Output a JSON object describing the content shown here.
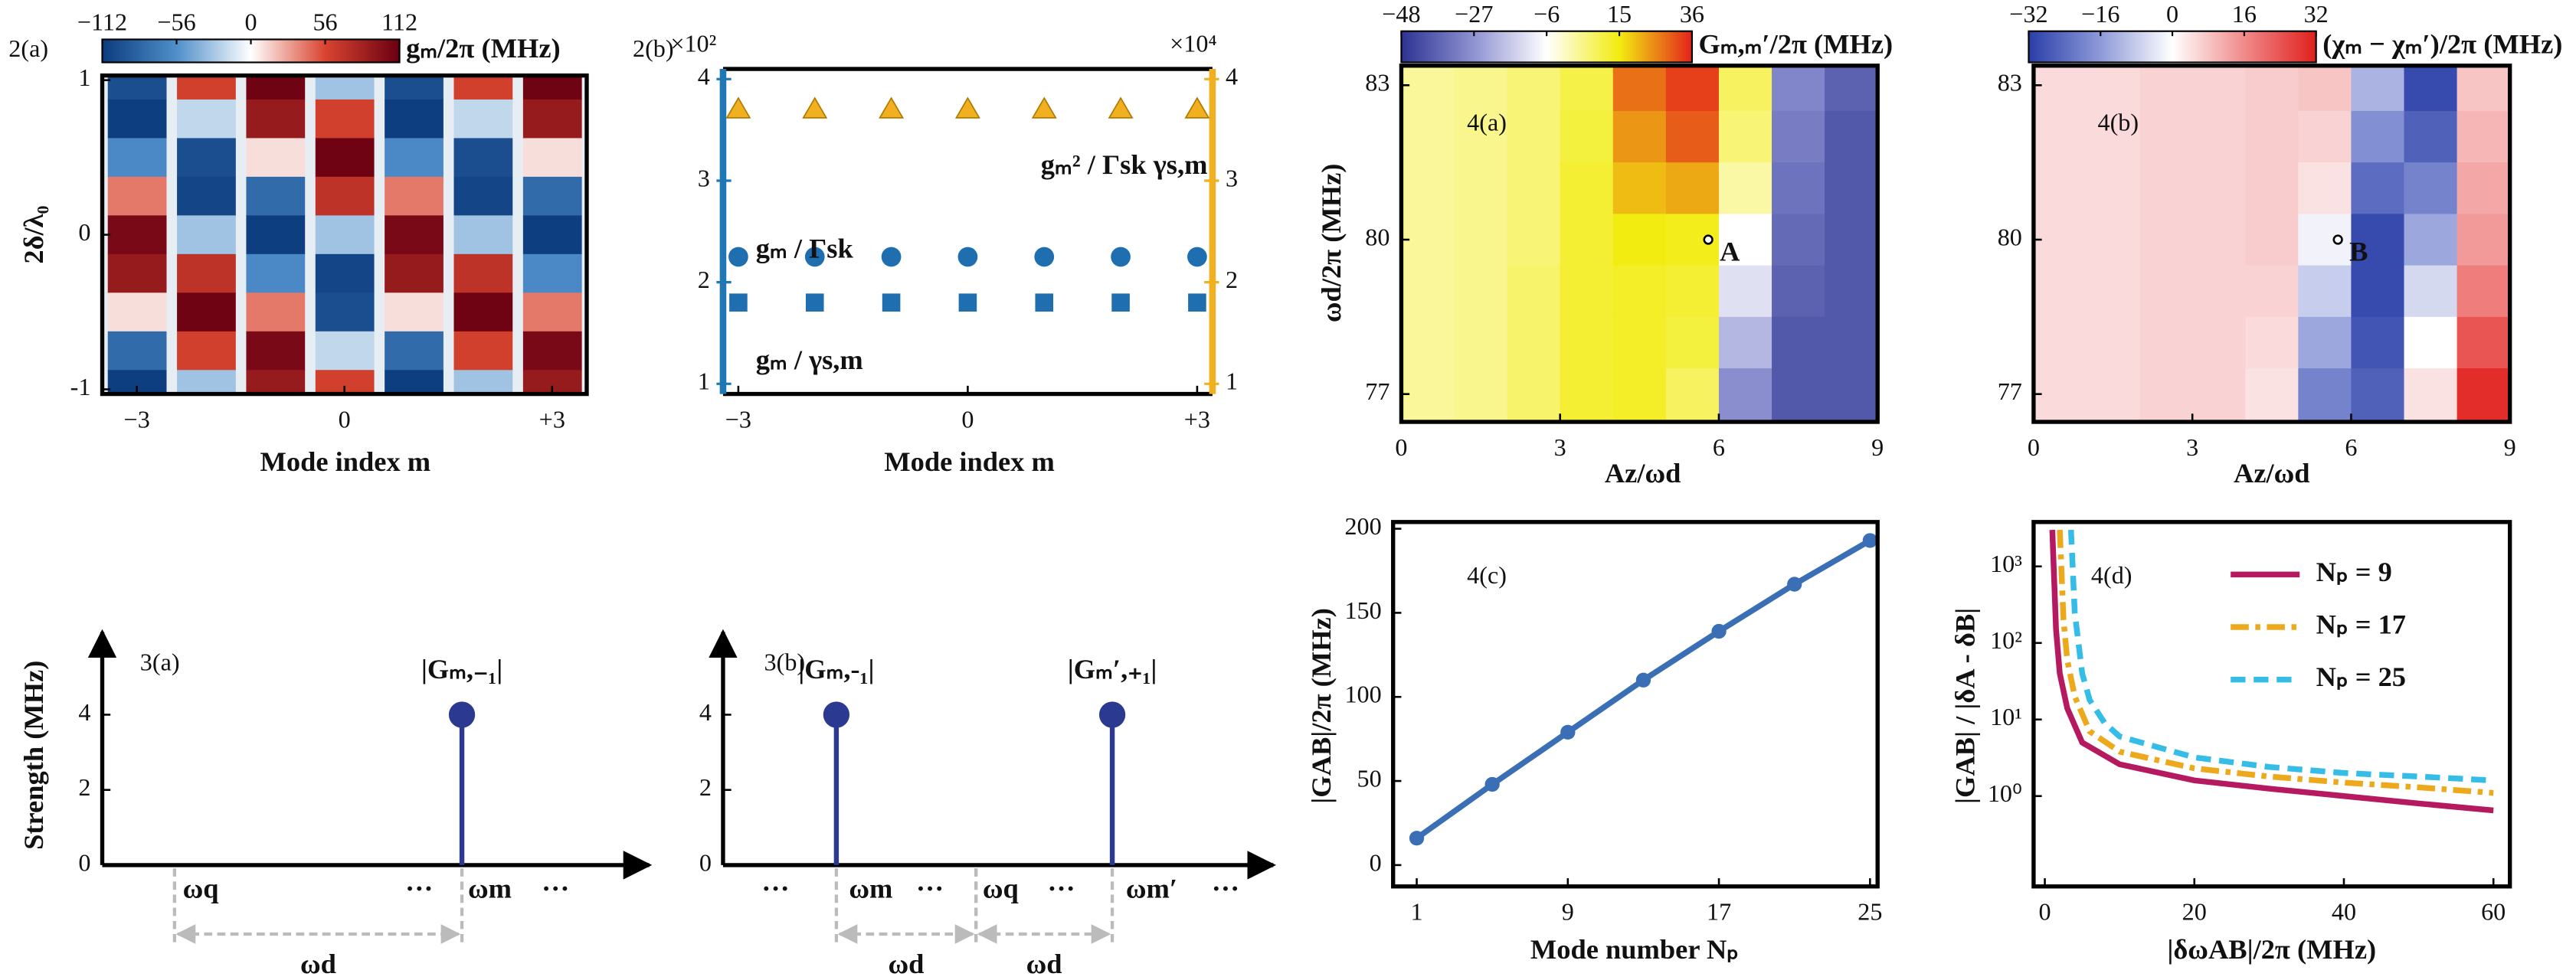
{
  "chart_data": [
    {
      "type": "heatmap",
      "panel_label": "2(a)",
      "colorbar_label": "gₘ/2π (MHz)",
      "cbar_lim": [
        -112,
        112
      ],
      "cbar_ticks": [
        {
          "value": -112,
          "label": "−112"
        },
        {
          "value": -56,
          "label": "−56"
        },
        0,
        56,
        112
      ],
      "colormap": [
        "#0b3c7d",
        "#4f8fca",
        "#ffffff",
        "#d9442f",
        "#6b0012"
      ],
      "x": [
        -3,
        -2,
        -1,
        0,
        1,
        2,
        3
      ],
      "y": [
        1,
        0.75,
        0.5,
        0.25,
        0,
        -0.25,
        -0.5,
        -0.75,
        -1
      ],
      "z": [
        [
          -100,
          60,
          110,
          -30,
          -100,
          60,
          110
        ],
        [
          -110,
          -20,
          90,
          60,
          -110,
          -20,
          90
        ],
        [
          -60,
          -100,
          10,
          110,
          -60,
          -100,
          10
        ],
        [
          40,
          -105,
          -80,
          70,
          40,
          -105,
          -80
        ],
        [
          105,
          -30,
          -110,
          -30,
          105,
          -30,
          -110
        ],
        [
          90,
          70,
          -60,
          -105,
          90,
          70,
          -60
        ],
        [
          10,
          110,
          40,
          -100,
          10,
          110,
          40
        ],
        [
          -80,
          60,
          105,
          -20,
          -80,
          60,
          105
        ],
        [
          -110,
          -30,
          90,
          60,
          -110,
          -30,
          90
        ]
      ],
      "xlim": [
        -3.5,
        3.5
      ],
      "ylim": [
        -1.03,
        1.03
      ],
      "xticks": [
        {
          "value": -3,
          "label": "−3"
        },
        0,
        {
          "value": 3,
          "label": "+3"
        }
      ],
      "yticks": [
        1,
        0,
        -1
      ],
      "xlabel": "Mode index m",
      "ylabel": "2δ/λ₀"
    },
    {
      "type": "scatter",
      "panel_label": "2(b)",
      "x": [
        -3,
        -2,
        -1,
        0,
        1,
        2,
        3
      ],
      "xlim": [
        -3.2,
        3.2
      ],
      "xticks": [
        {
          "value": -3,
          "label": "−3"
        },
        0,
        {
          "value": 3,
          "label": "+3"
        }
      ],
      "ylim": [
        0.9,
        4.1
      ],
      "yticks": [
        1,
        2,
        3,
        4
      ],
      "y2lim": [
        0.9,
        4.1
      ],
      "y2ticks": [
        1,
        2,
        3,
        4
      ],
      "y_scale_label": "×10²",
      "y2_scale_label": "×10⁴",
      "y_axis_color": "#1f77b4",
      "y2_axis_color": "#f0b020",
      "xlabel": "Mode index m",
      "series": [
        {
          "name": "gₘ / Γsk",
          "marker": "circle",
          "color": "#1f6fb0",
          "values": [
            2.25,
            2.25,
            2.25,
            2.25,
            2.25,
            2.25,
            2.25
          ]
        },
        {
          "name": "gₘ / γs,m",
          "marker": "square",
          "color": "#1f6fb0",
          "values": [
            1.8,
            1.8,
            1.8,
            1.8,
            1.8,
            1.8,
            1.8
          ]
        },
        {
          "name": "gₘ² / Γsk γs,m",
          "marker": "triangle",
          "color": "#f0b020",
          "axis": "y2",
          "values": [
            3.7,
            3.7,
            3.7,
            3.7,
            3.7,
            3.7,
            3.7
          ]
        }
      ]
    },
    {
      "type": "stem",
      "panel_label": "3(a)",
      "ylabel": "Strength (MHz)",
      "color": "#2b3990",
      "ylim": [
        0,
        6.2
      ],
      "yticks": [
        0,
        2,
        4
      ],
      "stems": [
        {
          "label": "|Gₘ,₋₁|",
          "value": 4
        }
      ],
      "x_labels": [
        "ωq",
        "···",
        "ωm",
        "···"
      ],
      "interval_labels": [
        "ωd"
      ]
    },
    {
      "type": "stem",
      "panel_label": "3(b)",
      "color": "#2b3990",
      "ylim": [
        0,
        6.2
      ],
      "yticks": [
        0,
        2,
        4
      ],
      "stems": [
        {
          "label": "|Gₘ,-₁|",
          "value": 4
        },
        {
          "label": "|Gₘ′,₊₁|",
          "value": 4
        }
      ],
      "x_labels": [
        "···",
        "ωm",
        "···",
        "ωq",
        "···",
        "ωm′",
        "···"
      ],
      "interval_labels": [
        "ωd",
        "ωd"
      ]
    },
    {
      "type": "heatmap",
      "panel_label": "4(a)",
      "colorbar_label": "Gₘ,ₘ′/2π (MHz)",
      "cbar_lim": [
        -48,
        36
      ],
      "cbar_ticks": [
        {
          "value": -48,
          "label": "−48"
        },
        {
          "value": -27,
          "label": "−27"
        },
        {
          "value": -6,
          "label": "−6"
        },
        15,
        36
      ],
      "colormap": [
        "#2d3392",
        "#8f93d2",
        "#ffffff",
        "#f2ec10",
        "#e3231c"
      ],
      "x": [
        0.5,
        1.5,
        2.5,
        3.5,
        4.5,
        5.5,
        6.5,
        7.5,
        8.5
      ],
      "y": [
        83,
        82,
        81,
        80,
        79,
        78,
        77
      ],
      "z": [
        [
          3,
          4,
          6,
          10,
          28,
          33,
          8,
          -30,
          -38
        ],
        [
          3,
          4,
          6,
          11,
          24,
          30,
          6,
          -32,
          -40
        ],
        [
          3,
          4,
          6,
          12,
          20,
          22,
          2,
          -34,
          -40
        ],
        [
          3,
          4,
          6,
          12,
          15,
          14,
          -6,
          -36,
          -40
        ],
        [
          3,
          4,
          7,
          12,
          13,
          12,
          -12,
          -38,
          -40
        ],
        [
          3,
          4,
          7,
          12,
          13,
          11,
          -20,
          -40,
          -40
        ],
        [
          3,
          4,
          7,
          12,
          13,
          8,
          -28,
          -40,
          -40
        ]
      ],
      "xlim": [
        0,
        9
      ],
      "ylim": [
        76.46,
        83.38
      ],
      "xticks": [
        0,
        3,
        6,
        9
      ],
      "yticks": [
        83,
        80,
        77
      ],
      "xlabel": "Az/ωd",
      "ylabel": "ωd/2π (MHz)",
      "points": [
        {
          "label": "A",
          "x": 5.8,
          "y": 80
        }
      ]
    },
    {
      "type": "heatmap",
      "panel_label": "4(b)",
      "colorbar_label": "(χₘ − χₘ′)/2π (MHz)",
      "cbar_lim": [
        -32,
        32
      ],
      "cbar_ticks": [
        {
          "value": -32,
          "label": "−32"
        },
        {
          "value": -16,
          "label": "−16"
        },
        0,
        16,
        32
      ],
      "colormap": [
        "#2a3ea8",
        "#8e9ad8",
        "#ffffff",
        "#f08a8a",
        "#e0201c"
      ],
      "x": [
        0.5,
        1.5,
        2.5,
        3.5,
        4.5,
        5.5,
        6.5,
        7.5,
        8.5
      ],
      "y": [
        83,
        82,
        81,
        80,
        79,
        78,
        77
      ],
      "z": [
        [
          5,
          5,
          6,
          6,
          7,
          8,
          -12,
          -30,
          8
        ],
        [
          5,
          5,
          6,
          6,
          7,
          6,
          -18,
          -26,
          10
        ],
        [
          5,
          5,
          6,
          6,
          7,
          4,
          -24,
          -20,
          12
        ],
        [
          5,
          5,
          6,
          6,
          7,
          -2,
          -30,
          -14,
          14
        ],
        [
          5,
          5,
          6,
          6,
          6,
          -8,
          -30,
          -6,
          18
        ],
        [
          5,
          5,
          6,
          6,
          5,
          -14,
          -28,
          0,
          24
        ],
        [
          5,
          5,
          6,
          6,
          4,
          -20,
          -26,
          4,
          30
        ]
      ],
      "xlim": [
        0,
        9
      ],
      "ylim": [
        76.46,
        83.38
      ],
      "xticks": [
        0,
        3,
        6,
        9
      ],
      "yticks": [
        83,
        80,
        77
      ],
      "xlabel": "Az/ωd",
      "points": [
        {
          "label": "B",
          "x": 5.75,
          "y": 80
        }
      ]
    },
    {
      "type": "line",
      "panel_label": "4(c)",
      "x": [
        1,
        5,
        9,
        13,
        17,
        21,
        25
      ],
      "xlim": [
        -0.25,
        25.4
      ],
      "xticks": [
        1,
        9,
        17,
        25
      ],
      "ylim": [
        -12.7,
        204
      ],
      "yticks": [
        0,
        50,
        100,
        150,
        200
      ],
      "xlabel": "Mode number Nₚ",
      "ylabel": "|GAB|/2π (MHz)",
      "markers": true,
      "series": [
        {
          "color": "#3a6fb5",
          "linestyle": "solid",
          "values": [
            16,
            48,
            79,
            110,
            139,
            167,
            193
          ]
        }
      ]
    },
    {
      "type": "line",
      "panel_label": "4(d)",
      "log_y": true,
      "legend": "upper right",
      "xlim": [
        -1.5,
        62.2
      ],
      "xticks": [
        0,
        20,
        40,
        60
      ],
      "ylim": [
        0.066,
        3800
      ],
      "yticks": [
        {
          "value": 1,
          "label": "10⁰"
        },
        {
          "value": 10,
          "label": "10¹"
        },
        {
          "value": 100,
          "label": "10²"
        },
        {
          "value": 1000,
          "label": "10³"
        }
      ],
      "xlabel": "|δωAB|/2π (MHz)",
      "ylabel": "|GAB| / |δA - δB|",
      "series": [
        {
          "name": "Nₚ = 9",
          "color": "#b5195f",
          "linestyle": "solid",
          "x": [
            1,
            1.5,
            2,
            3,
            5,
            10,
            20,
            30,
            40,
            50,
            60
          ],
          "values": [
            3000,
            150,
            40,
            14,
            5,
            2.6,
            1.6,
            1.25,
            1,
            0.8,
            0.65
          ]
        },
        {
          "name": "Nₚ = 17",
          "color": "#eda91c",
          "linestyle": "dashdot",
          "x": [
            2,
            2.5,
            3,
            4,
            6,
            10,
            20,
            30,
            40,
            50,
            60
          ],
          "values": [
            3000,
            200,
            60,
            20,
            7,
            3.8,
            2.3,
            1.8,
            1.5,
            1.3,
            1.1
          ]
        },
        {
          "name": "Nₚ = 25",
          "color": "#35bde8",
          "linestyle": "dashed",
          "x": [
            3.5,
            4,
            5,
            6,
            8,
            10,
            20,
            30,
            40,
            50,
            60
          ],
          "values": [
            3000,
            250,
            40,
            18,
            9,
            6,
            3.2,
            2.4,
            2,
            1.8,
            1.6
          ]
        }
      ]
    }
  ]
}
